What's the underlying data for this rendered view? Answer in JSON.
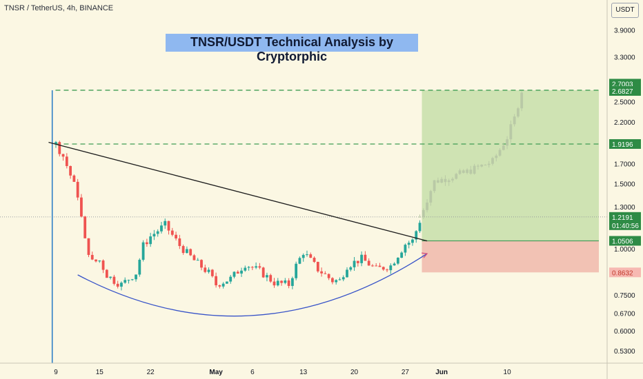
{
  "header": {
    "symbol_line": "TNSR / TetherUS, 4h, BINANCE",
    "currency": "USDT"
  },
  "chart_title": "TNSR/USDT Technical Analysis by Cryptorphic",
  "colors": {
    "background": "#fbf7e3",
    "candle_up": "#26a69a",
    "candle_down": "#ef5350",
    "projection": "#b9c9a6",
    "target_zone": "#cfe3b3",
    "stop_zone": "#f2c2b4",
    "dashed_level": "#3d9b52",
    "trendline": "#1c1c1c",
    "cup_curve": "#3652c8",
    "vertical_marker": "#2e7fc6"
  },
  "chart_data": {
    "type": "candlestick",
    "scale": "log",
    "y_ticks": [
      "3.9000",
      "3.3000",
      "2.5000",
      "2.2000",
      "1.7000",
      "1.5000",
      "1.3000",
      "1.0000",
      "0.7500",
      "0.6700",
      "0.6000",
      "0.5300"
    ],
    "x_ticks": [
      "9",
      "15",
      "22",
      "May",
      "6",
      "13",
      "20",
      "27",
      "Jun",
      "10"
    ],
    "price_labels": [
      {
        "text": "2.7003",
        "value": 2.7003,
        "kind": "green"
      },
      {
        "text": "2.6827",
        "value": 2.6827,
        "kind": "green"
      },
      {
        "text": "1.9196",
        "value": 1.9196,
        "kind": "green"
      },
      {
        "text": "1.2191",
        "value": 1.2191,
        "kind": "green",
        "sub": "01:40:56"
      },
      {
        "text": "1.0506",
        "value": 1.0506,
        "kind": "green"
      },
      {
        "text": "0.8632",
        "value": 0.8632,
        "kind": "red"
      }
    ],
    "levels": {
      "target_1": 2.6827,
      "target_2": 1.9196,
      "entry": 1.0506,
      "stop": 0.8632,
      "last_price": 1.2191
    },
    "price_series": [
      {
        "date": "Apr 9",
        "value": 1.92
      },
      {
        "date": "Apr 10",
        "value": 1.78
      },
      {
        "date": "Apr 11",
        "value": 1.58
      },
      {
        "date": "Apr 12",
        "value": 1.4
      },
      {
        "date": "Apr 13",
        "value": 1.05
      },
      {
        "date": "Apr 14",
        "value": 0.92
      },
      {
        "date": "Apr 15",
        "value": 0.93
      },
      {
        "date": "Apr 16",
        "value": 0.85
      },
      {
        "date": "Apr 17",
        "value": 0.82
      },
      {
        "date": "Apr 18",
        "value": 0.8
      },
      {
        "date": "Apr 20",
        "value": 0.86
      },
      {
        "date": "Apr 21",
        "value": 1.02
      },
      {
        "date": "Apr 22",
        "value": 1.08
      },
      {
        "date": "Apr 24",
        "value": 1.16
      },
      {
        "date": "Apr 26",
        "value": 1.02
      },
      {
        "date": "Apr 28",
        "value": 0.93
      },
      {
        "date": "Apr 30",
        "value": 0.86
      },
      {
        "date": "May 1",
        "value": 0.8
      },
      {
        "date": "May 3",
        "value": 0.83
      },
      {
        "date": "May 5",
        "value": 0.91
      },
      {
        "date": "May 7",
        "value": 0.87
      },
      {
        "date": "May 9",
        "value": 0.81
      },
      {
        "date": "May 11",
        "value": 0.8
      },
      {
        "date": "May 12",
        "value": 0.9
      },
      {
        "date": "May 13",
        "value": 0.98
      },
      {
        "date": "May 15",
        "value": 0.88
      },
      {
        "date": "May 17",
        "value": 0.82
      },
      {
        "date": "May 18",
        "value": 0.82
      },
      {
        "date": "May 19",
        "value": 0.9
      },
      {
        "date": "May 21",
        "value": 0.94
      },
      {
        "date": "May 23",
        "value": 0.88
      },
      {
        "date": "May 25",
        "value": 0.9
      },
      {
        "date": "May 27",
        "value": 1.03
      },
      {
        "date": "May 28",
        "value": 1.05
      },
      {
        "date": "May 29",
        "value": 1.19
      }
    ],
    "projection_series": [
      {
        "date": "May 29",
        "value": 1.22
      },
      {
        "date": "May 31",
        "value": 1.52
      },
      {
        "date": "Jun 2",
        "value": 1.56
      },
      {
        "date": "Jun 4",
        "value": 1.6
      },
      {
        "date": "Jun 6",
        "value": 1.66
      },
      {
        "date": "Jun 8",
        "value": 1.72
      },
      {
        "date": "Jun 10",
        "value": 2.0
      },
      {
        "date": "Jun 11",
        "value": 2.25
      },
      {
        "date": "Jun 12",
        "value": 2.68
      }
    ],
    "trendline": [
      {
        "date": "Apr 8",
        "value": 1.94
      },
      {
        "date": "May 30",
        "value": 1.05
      }
    ],
    "cup_curve": [
      {
        "date": "Apr 12",
        "value": 0.85
      },
      {
        "date": "May 6",
        "value": 0.66
      },
      {
        "date": "May 30",
        "value": 0.97
      }
    ]
  }
}
